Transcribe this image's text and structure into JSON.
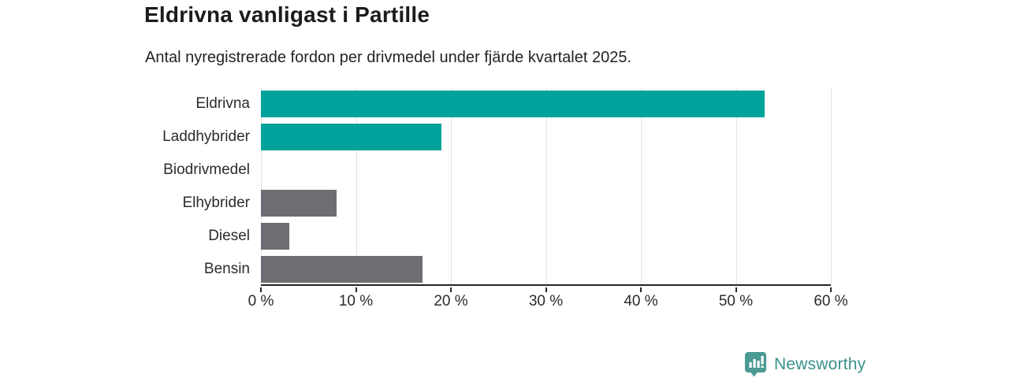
{
  "title": "Eldrivna vanligast i Partille",
  "subtitle": "Antal nyregistrerade fordon per drivmedel under fjärde kvartalet 2025.",
  "chart_data": {
    "type": "bar",
    "orientation": "horizontal",
    "title": "Eldrivna vanligast i Partille",
    "subtitle": "Antal nyregistrerade fordon per drivmedel under fjärde kvartalet 2025.",
    "categories": [
      "Eldrivna",
      "Laddhybrider",
      "Biodrivmedel",
      "Elhybrider",
      "Diesel",
      "Bensin"
    ],
    "values": [
      53,
      19,
      0,
      8,
      3,
      17
    ],
    "unit": "%",
    "xlim": [
      0,
      60
    ],
    "x_tick_values": [
      0,
      10,
      20,
      30,
      40,
      50,
      60
    ],
    "x_tick_labels": [
      "0 %",
      "10 %",
      "20 %",
      "30 %",
      "40 %",
      "50 %",
      "60 %"
    ],
    "grid": true,
    "legend": "none",
    "bar_colors": [
      "#00a29b",
      "#00a29b",
      "#6e6d73",
      "#6e6d73",
      "#6e6d73",
      "#6e6d73"
    ],
    "colors": {
      "electric_teal": "#00a29b",
      "fossil_gray": "#6e6d73",
      "gridline": "#e4e4e4",
      "axis": "#262626"
    }
  },
  "branding": {
    "logo_text": "Newsworthy",
    "logo_text_color": "#3a918a",
    "logo_icon_color": "#4a9a93",
    "logo_icon": "bar-chart-speech-bubble-icon"
  }
}
